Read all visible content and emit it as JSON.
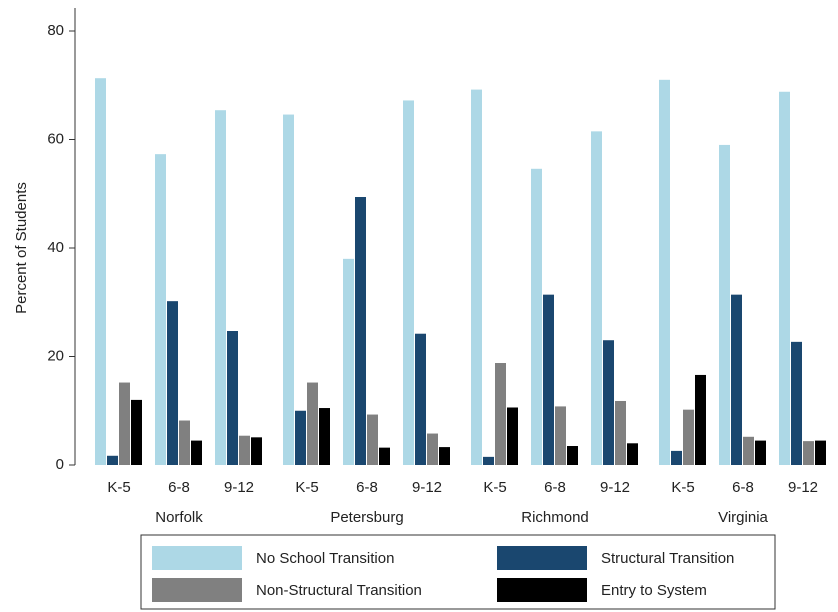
{
  "chart_data": {
    "type": "bar",
    "y_label": "Percent of Students",
    "groups": [
      "Norfolk",
      "Petersburg",
      "Richmond",
      "Virginia"
    ],
    "categories": [
      "K-5",
      "6-8",
      "9-12",
      "K-5",
      "6-8",
      "9-12",
      "K-5",
      "6-8",
      "9-12",
      "K-5",
      "6-8",
      "9-12"
    ],
    "series": [
      {
        "name": "No School Transition",
        "color": "#add8e6",
        "values": [
          71.3,
          57.3,
          65.4,
          64.6,
          38,
          67.2,
          69.2,
          54.6,
          61.5,
          71,
          59,
          68.8
        ]
      },
      {
        "name": "Structural Transition",
        "color": "#1a476f",
        "values": [
          1.7,
          30.2,
          24.7,
          10,
          49.4,
          24.2,
          1.5,
          31.4,
          23,
          2.6,
          31.4,
          22.7
        ]
      },
      {
        "name": "Non-Structural Transition",
        "color": "#808080",
        "values": [
          15.2,
          8.2,
          5.4,
          15.2,
          9.3,
          5.8,
          18.8,
          10.8,
          11.8,
          10.2,
          5.2,
          4.4
        ]
      },
      {
        "name": "Entry to System",
        "color": "#000000",
        "values": [
          12,
          4.5,
          5.1,
          10.5,
          3.2,
          3.3,
          10.6,
          3.5,
          4,
          16.6,
          4.5,
          4.5
        ]
      }
    ],
    "ylim": [
      0,
      80
    ],
    "yticks": [
      0,
      20,
      40,
      60,
      80
    ]
  }
}
